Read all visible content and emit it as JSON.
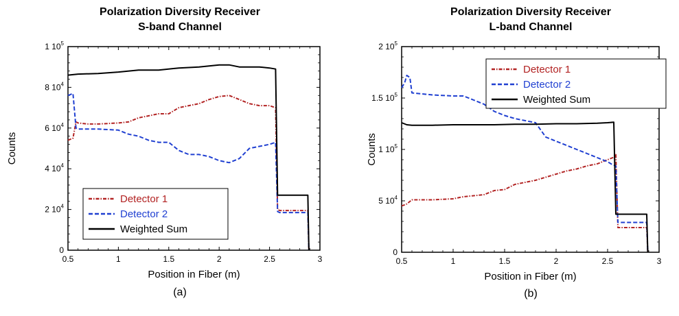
{
  "chart_data": [
    {
      "type": "line",
      "title": "Polarization Diversity Receiver",
      "subtitle": "S-band Channel",
      "xlabel": "Position in Fiber (m)",
      "ylabel": "Counts",
      "xlim": [
        0.5,
        3
      ],
      "ylim": [
        0,
        100000
      ],
      "x_ticks": [
        "0.5",
        "1",
        "1.5",
        "2",
        "2.5",
        "3"
      ],
      "y_ticks": [
        {
          "mant": "0",
          "exp": ""
        },
        {
          "mant": "2 10",
          "exp": "4"
        },
        {
          "mant": "4 10",
          "exp": "4"
        },
        {
          "mant": "6 10",
          "exp": "4"
        },
        {
          "mant": "8 10",
          "exp": "4"
        },
        {
          "mant": "1 10",
          "exp": "5"
        }
      ],
      "legend_position": "bottom-left",
      "caption": "(a)",
      "series": [
        {
          "name": "Detector 1",
          "color": "#b22222",
          "dash": "dash-dot",
          "x": [
            0.5,
            0.55,
            0.58,
            0.6,
            0.7,
            0.8,
            1.0,
            1.1,
            1.2,
            1.3,
            1.4,
            1.5,
            1.6,
            1.7,
            1.8,
            1.9,
            2.0,
            2.1,
            2.2,
            2.3,
            2.4,
            2.5,
            2.56,
            2.58,
            2.6,
            2.7,
            2.8,
            2.88,
            2.89
          ],
          "y": [
            54000,
            55000,
            63000,
            62500,
            62000,
            62000,
            62500,
            63000,
            65000,
            66000,
            67000,
            67000,
            70000,
            71000,
            72000,
            74000,
            75500,
            76000,
            74000,
            72000,
            71000,
            71000,
            70000,
            20000,
            19500,
            19500,
            19500,
            19500,
            0
          ]
        },
        {
          "name": "Detector 2",
          "color": "#1f3fd1",
          "dash": "dash",
          "x": [
            0.5,
            0.55,
            0.58,
            0.6,
            0.7,
            0.8,
            1.0,
            1.1,
            1.2,
            1.3,
            1.4,
            1.5,
            1.6,
            1.7,
            1.8,
            1.9,
            2.0,
            2.1,
            2.2,
            2.3,
            2.4,
            2.5,
            2.56,
            2.58,
            2.6,
            2.7,
            2.8,
            2.88,
            2.89
          ],
          "y": [
            76000,
            77000,
            60000,
            59500,
            59500,
            59500,
            59000,
            57000,
            56000,
            54000,
            53000,
            53000,
            49000,
            47000,
            47000,
            46000,
            44000,
            43000,
            45000,
            50000,
            51000,
            52000,
            53000,
            19000,
            18500,
            18500,
            18500,
            18500,
            0
          ]
        },
        {
          "name": "Weighted Sum",
          "color": "#000000",
          "dash": "solid",
          "x": [
            0.5,
            0.6,
            0.8,
            1.0,
            1.2,
            1.4,
            1.6,
            1.8,
            2.0,
            2.1,
            2.2,
            2.4,
            2.5,
            2.56,
            2.58,
            2.6,
            2.7,
            2.8,
            2.88,
            2.89
          ],
          "y": [
            86000,
            86500,
            86800,
            87500,
            88500,
            88500,
            89500,
            90000,
            91000,
            91000,
            90000,
            90000,
            89500,
            89000,
            27000,
            27000,
            27000,
            27000,
            27000,
            0
          ]
        }
      ]
    },
    {
      "type": "line",
      "title": "Polarization Diversity Receiver",
      "subtitle": "L-band Channel",
      "xlabel": "Position in Fiber (m)",
      "ylabel": "Counts",
      "xlim": [
        0.5,
        3
      ],
      "ylim": [
        0,
        200000
      ],
      "x_ticks": [
        "0.5",
        "1",
        "1.5",
        "2",
        "2.5",
        "3"
      ],
      "y_ticks": [
        {
          "mant": "0",
          "exp": ""
        },
        {
          "mant": "5 10",
          "exp": "4"
        },
        {
          "mant": "1 10",
          "exp": "5"
        },
        {
          "mant": "1.5 10",
          "exp": "5"
        },
        {
          "mant": "2 10",
          "exp": "5"
        }
      ],
      "legend_position": "top-right",
      "caption": "(b)",
      "series": [
        {
          "name": "Detector 1",
          "color": "#b22222",
          "dash": "dash-dot",
          "x": [
            0.5,
            0.55,
            0.6,
            0.8,
            1.0,
            1.1,
            1.2,
            1.3,
            1.4,
            1.5,
            1.6,
            1.7,
            1.8,
            1.9,
            2.0,
            2.1,
            2.2,
            2.3,
            2.4,
            2.5,
            2.55,
            2.58,
            2.6,
            2.7,
            2.8,
            2.88,
            2.89
          ],
          "y": [
            45000,
            47000,
            51000,
            51000,
            52000,
            54000,
            55000,
            56000,
            60000,
            61000,
            66000,
            68000,
            70000,
            73000,
            76000,
            79000,
            81000,
            84000,
            86000,
            90000,
            92000,
            95000,
            24000,
            24000,
            24000,
            24000,
            0
          ]
        },
        {
          "name": "Detector 2",
          "color": "#1f3fd1",
          "dash": "dash",
          "x": [
            0.5,
            0.53,
            0.55,
            0.58,
            0.6,
            0.8,
            1.0,
            1.1,
            1.2,
            1.3,
            1.4,
            1.5,
            1.6,
            1.7,
            1.8,
            1.9,
            2.0,
            2.1,
            2.2,
            2.3,
            2.4,
            2.5,
            2.55,
            2.58,
            2.6,
            2.7,
            2.8,
            2.88,
            2.89
          ],
          "y": [
            160000,
            165000,
            172000,
            170000,
            155000,
            153000,
            152000,
            152000,
            148000,
            144000,
            137000,
            133000,
            130000,
            128000,
            126000,
            112000,
            108000,
            104000,
            100000,
            96000,
            92000,
            88000,
            85000,
            84000,
            29000,
            29000,
            29000,
            29000,
            0
          ]
        },
        {
          "name": "Weighted Sum",
          "color": "#000000",
          "dash": "solid",
          "x": [
            0.5,
            0.55,
            0.6,
            0.8,
            1.0,
            1.2,
            1.4,
            1.6,
            1.8,
            2.0,
            2.2,
            2.4,
            2.5,
            2.56,
            2.58,
            2.6,
            2.7,
            2.8,
            2.88,
            2.89
          ],
          "y": [
            126000,
            124000,
            123500,
            123500,
            124000,
            124000,
            124000,
            124500,
            124500,
            125000,
            125000,
            125500,
            126000,
            126500,
            37000,
            37000,
            37000,
            37000,
            37000,
            0
          ]
        }
      ]
    }
  ]
}
